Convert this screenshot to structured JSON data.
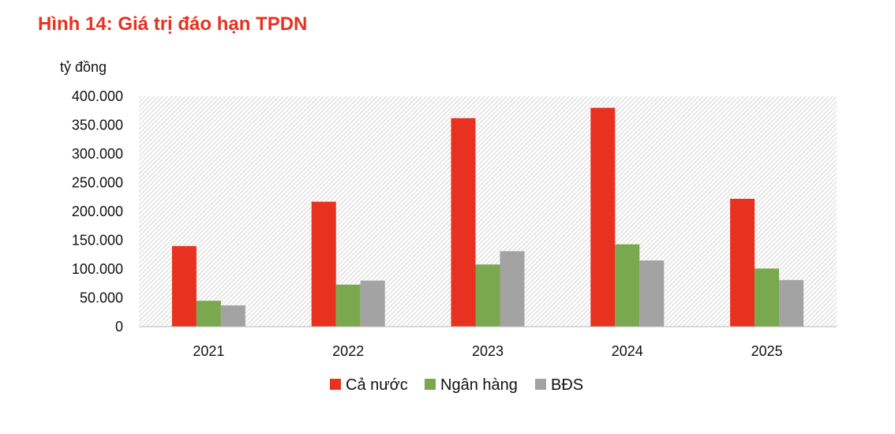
{
  "title": "Hình 14: Giá trị đáo hạn TPDN",
  "chart_data": {
    "type": "bar",
    "title": "Hình 14: Giá trị đáo hạn TPDN",
    "ylabel": "tỷ đồng",
    "xlabel": "",
    "categories": [
      "2021",
      "2022",
      "2023",
      "2024",
      "2025"
    ],
    "series": [
      {
        "name": "Cả nước",
        "color": "#e8321f",
        "values": [
          140000,
          217000,
          362000,
          380000,
          222000
        ]
      },
      {
        "name": "Ngân hàng",
        "color": "#7aa84f",
        "values": [
          45000,
          73000,
          108000,
          143000,
          101000
        ]
      },
      {
        "name": "BĐS",
        "color": "#a3a3a3",
        "values": [
          37000,
          80000,
          131000,
          115000,
          81000
        ]
      }
    ],
    "ylim": [
      0,
      400000
    ],
    "yticks": [
      "0",
      "50.000",
      "100.000",
      "150.000",
      "200.000",
      "250.000",
      "300.000",
      "350.000",
      "400.000"
    ],
    "grid": false,
    "legend": "bottom"
  }
}
